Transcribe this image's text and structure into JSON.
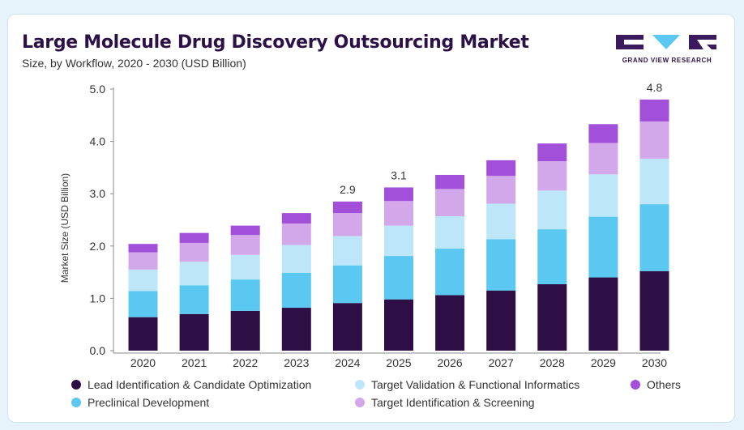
{
  "header": {
    "title": "Large Molecule Drug Discovery Outsourcing Market",
    "subtitle": "Size, by Workflow, 2020 - 2030 (USD Billion)",
    "logo_text": "GRAND VIEW RESEARCH"
  },
  "colors": {
    "title": "#2c1147",
    "card_bg": "#ffffff",
    "page_bg": "#e6f3fb",
    "logo": "#3a1a5c"
  },
  "chart_data": {
    "type": "bar",
    "stacked": true,
    "title": "Large Molecule Drug Discovery Outsourcing Market",
    "subtitle": "Size, by Workflow, 2020 - 2030 (USD Billion)",
    "xlabel": "",
    "ylabel": "Market Size (USD Billion)",
    "ylim": [
      0,
      5
    ],
    "yticks": [
      "0.0",
      "1.0",
      "2.0",
      "3.0",
      "4.0",
      "5.0"
    ],
    "grid": false,
    "legend_position": "bottom",
    "categories": [
      "2020",
      "2021",
      "2022",
      "2023",
      "2024",
      "2025",
      "2026",
      "2027",
      "2028",
      "2029",
      "2030"
    ],
    "series": [
      {
        "name": "Lead Identification & Candidate Optimization",
        "color": "#2e0f45",
        "values": [
          0.64,
          0.7,
          0.76,
          0.82,
          0.91,
          0.98,
          1.06,
          1.15,
          1.27,
          1.4,
          1.52
        ]
      },
      {
        "name": "Preclinical Development",
        "color": "#5ac8f0",
        "values": [
          0.5,
          0.55,
          0.6,
          0.67,
          0.72,
          0.83,
          0.89,
          0.98,
          1.05,
          1.16,
          1.28
        ]
      },
      {
        "name": "Target Validation & Functional Informatics",
        "color": "#bde6f8",
        "values": [
          0.41,
          0.45,
          0.47,
          0.53,
          0.56,
          0.58,
          0.62,
          0.68,
          0.74,
          0.81,
          0.87
        ]
      },
      {
        "name": "Target Identification & Screening",
        "color": "#d2a8ea",
        "values": [
          0.33,
          0.36,
          0.38,
          0.41,
          0.44,
          0.47,
          0.52,
          0.53,
          0.56,
          0.6,
          0.71
        ]
      },
      {
        "name": "Others",
        "color": "#a24fd9",
        "values": [
          0.16,
          0.19,
          0.18,
          0.2,
          0.22,
          0.26,
          0.27,
          0.3,
          0.34,
          0.36,
          0.42
        ]
      }
    ],
    "totals_labels": [
      {
        "category": "2024",
        "label": "2.9"
      },
      {
        "category": "2025",
        "label": "3.1"
      },
      {
        "category": "2030",
        "label": "4.8"
      }
    ]
  },
  "legend": [
    {
      "label": "Lead Identification & Candidate Optimization",
      "color": "#2e0f45"
    },
    {
      "label": "Target Validation & Functional Informatics",
      "color": "#bde6f8"
    },
    {
      "label": "Others",
      "color": "#a24fd9"
    },
    {
      "label": "Preclinical Development",
      "color": "#5ac8f0"
    },
    {
      "label": "Target Identification & Screening",
      "color": "#d2a8ea"
    }
  ]
}
